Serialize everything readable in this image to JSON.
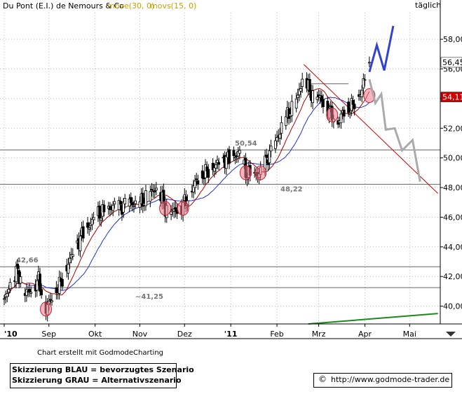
{
  "chart_data": {
    "type": "candlestick",
    "title": "Du Pont (E.I.) de Nemours & Co",
    "indicators": [
      {
        "label": "move(30, 0)",
        "color": "#c8a000"
      },
      {
        "label": "movs(15, 0)",
        "color": "#c8a000"
      }
    ],
    "period_label": "täglich",
    "x_ticks": [
      {
        "label": "'10",
        "day": 0
      },
      {
        "label": "Sep",
        "day": 30
      },
      {
        "label": "Okt",
        "day": 61
      },
      {
        "label": "Nov",
        "day": 91
      },
      {
        "label": "Dez",
        "day": 121
      },
      {
        "label": "'11",
        "day": 152
      },
      {
        "label": "Feb",
        "day": 183
      },
      {
        "label": "Mrz",
        "day": 211
      },
      {
        "label": "Apr",
        "day": 242
      },
      {
        "label": "Mai",
        "day": 272
      }
    ],
    "y_ticks": [
      40,
      42,
      44,
      46,
      48,
      50,
      52,
      54,
      56,
      58
    ],
    "ylim": [
      38.8,
      59.8
    ],
    "last_price": "56,45",
    "marker_price": "54,11",
    "horizontal_levels": [
      {
        "value": 50.54,
        "label": "50,54"
      },
      {
        "value": 48.22,
        "label": "48,22"
      },
      {
        "value": 42.66,
        "label": "42,66"
      },
      {
        "value": 41.25,
        "label": "~41,25"
      }
    ],
    "trendlines": [
      {
        "name": "resistance",
        "color": "#cc0000",
        "from": {
          "day": 201,
          "price": 56.3
        },
        "to": {
          "day": 291,
          "price": 47.6
        }
      },
      {
        "name": "support",
        "color": "#1a8a1a",
        "from": {
          "day": 204,
          "price": 38.8
        },
        "to": {
          "day": 291,
          "price": 39.5
        }
      }
    ],
    "scenario_paths": [
      {
        "name": "blue",
        "color": "#3344cc",
        "points": [
          [
            245,
            55.8
          ],
          [
            250,
            57.6
          ],
          [
            255,
            55.9
          ],
          [
            261,
            58.9
          ]
        ]
      },
      {
        "name": "gray",
        "color": "#aaaaaa",
        "points": [
          [
            245,
            55.3
          ],
          [
            249,
            53.7
          ],
          [
            253,
            54.3
          ],
          [
            256,
            51.9
          ],
          [
            262,
            52.0
          ],
          [
            267,
            50.5
          ],
          [
            274,
            51.2
          ],
          [
            279,
            48.4
          ]
        ]
      }
    ],
    "circles": [
      {
        "day": 28,
        "price": 39.8
      },
      {
        "day": 108,
        "price": 46.6
      },
      {
        "day": 120,
        "price": 46.6
      },
      {
        "day": 162,
        "price": 49.0
      },
      {
        "day": 172,
        "price": 49.0
      },
      {
        "day": 220,
        "price": 52.9
      },
      {
        "day": 245,
        "price": 54.2
      }
    ],
    "close_anchors": [
      [
        0,
        40.3
      ],
      [
        4,
        41.6
      ],
      [
        9,
        42.4
      ],
      [
        14,
        40.8
      ],
      [
        19,
        41.2
      ],
      [
        23,
        41.8
      ],
      [
        28,
        39.8
      ],
      [
        33,
        40.8
      ],
      [
        38,
        41.6
      ],
      [
        43,
        42.9
      ],
      [
        48,
        44.0
      ],
      [
        53,
        45.0
      ],
      [
        58,
        45.6
      ],
      [
        63,
        46.2
      ],
      [
        68,
        46.4
      ],
      [
        73,
        46.8
      ],
      [
        78,
        46.7
      ],
      [
        83,
        47.0
      ],
      [
        88,
        46.9
      ],
      [
        93,
        47.1
      ],
      [
        98,
        47.6
      ],
      [
        103,
        48.1
      ],
      [
        108,
        46.6
      ],
      [
        113,
        46.4
      ],
      [
        118,
        46.6
      ],
      [
        123,
        47.3
      ],
      [
        128,
        48.3
      ],
      [
        133,
        48.9
      ],
      [
        138,
        49.2
      ],
      [
        143,
        49.6
      ],
      [
        148,
        49.9
      ],
      [
        153,
        50.1
      ],
      [
        158,
        50.3
      ],
      [
        162,
        49.0
      ],
      [
        166,
        48.8
      ],
      [
        172,
        49.0
      ],
      [
        177,
        50.1
      ],
      [
        182,
        51.0
      ],
      [
        187,
        52.4
      ],
      [
        192,
        53.2
      ],
      [
        197,
        54.1
      ],
      [
        201,
        55.8
      ],
      [
        205,
        54.4
      ],
      [
        210,
        54.2
      ],
      [
        215,
        53.7
      ],
      [
        220,
        52.9
      ],
      [
        224,
        52.4
      ],
      [
        228,
        53.2
      ],
      [
        232,
        53.4
      ],
      [
        236,
        53.8
      ],
      [
        240,
        54.6
      ],
      [
        243,
        55.8
      ],
      [
        245,
        56.45
      ]
    ]
  },
  "footer": {
    "credit": "Chart erstellt mit GodmodeCharting",
    "legend_blue": "Skizzierung BLAU = bevorzugtes Szenario",
    "legend_gray": "Skizzierung GRAU = Alternativszenario",
    "copyright_icon": "copyright-icon",
    "url": "http://www.godmode-trader.de"
  }
}
